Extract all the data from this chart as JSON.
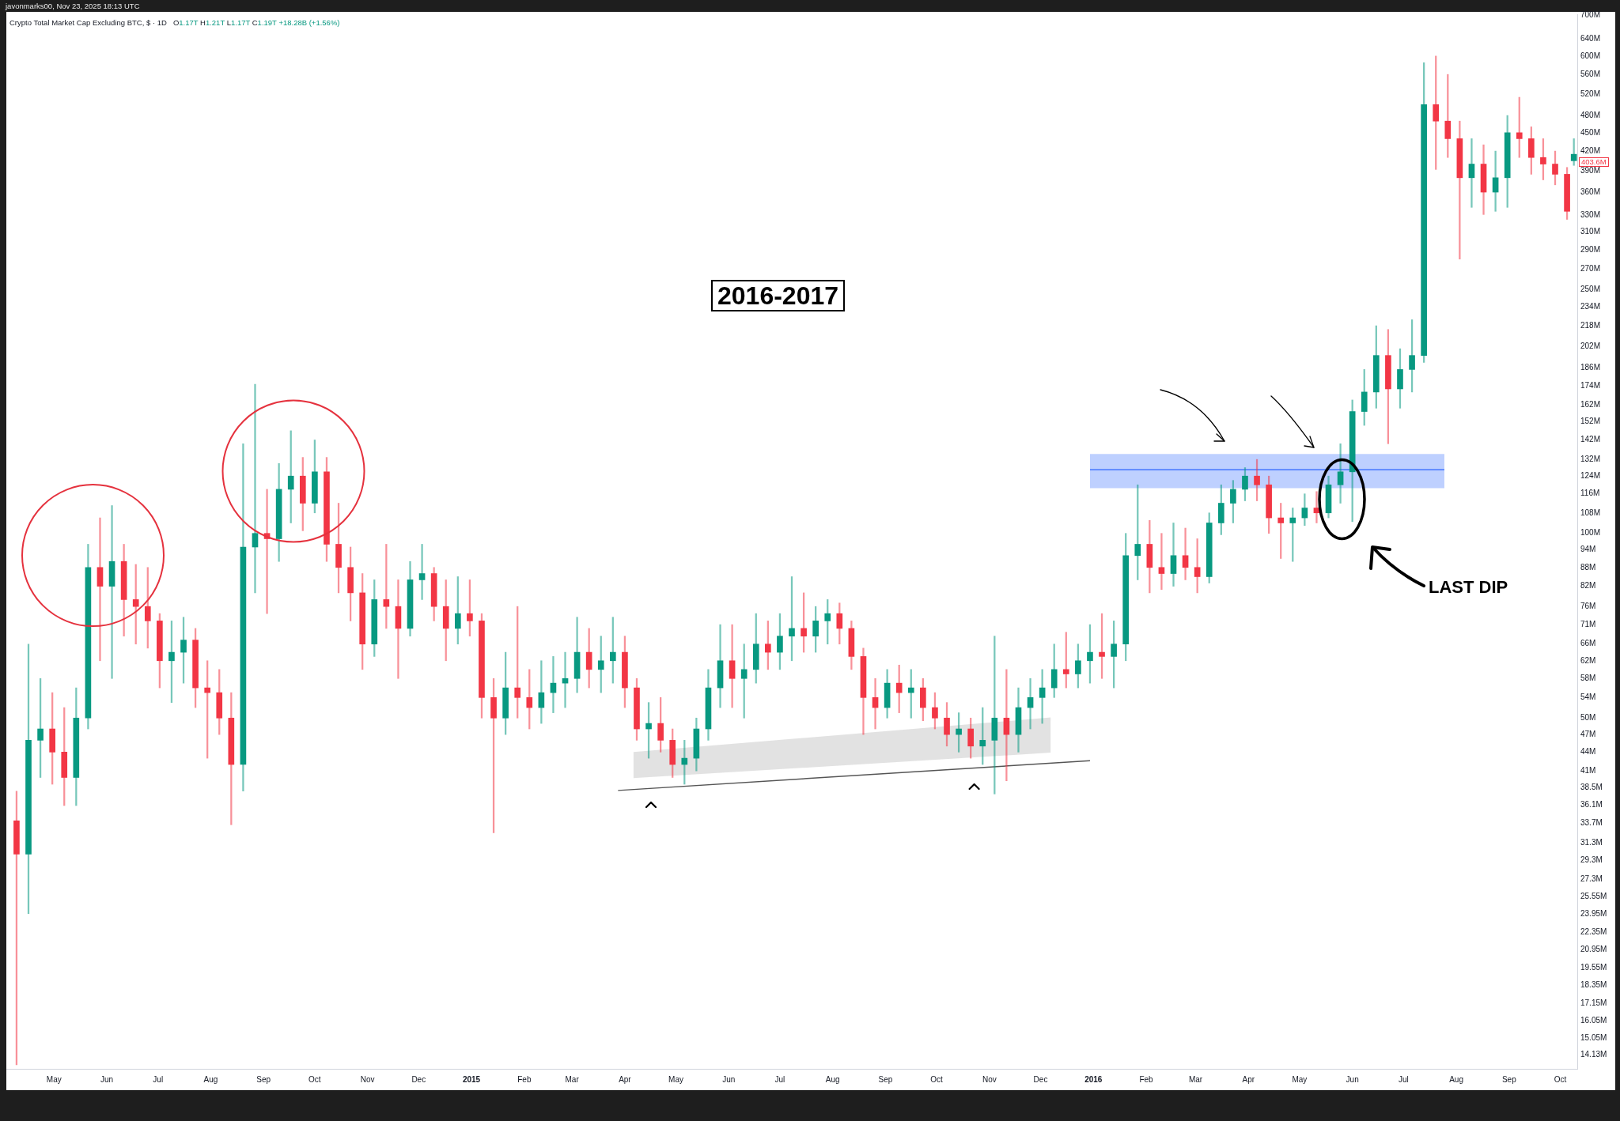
{
  "chart_data": {
    "type": "candlestick",
    "title": "Crypto Total Market Cap Excluding BTC, $ · 1D",
    "subtitle": "O1.17T H1.21T L1.17T C1.19T +18.28B (+1.56%)",
    "annotations": [
      "javonmarks00, Nov 23, 2025 18:13 UTC",
      "2016-2017",
      "LAST DIP",
      {
        "text": "403.6M",
        "y": 403.6
      }
    ],
    "log": "y",
    "xlim": [
      "2014-04-03",
      "2016-10-11"
    ],
    "xticks": [
      {
        "value": "2014-05-01",
        "label": "May"
      },
      {
        "value": "2014-06-01",
        "label": "Jun"
      },
      {
        "value": "2014-07-01",
        "label": "Jul"
      },
      {
        "value": "2014-08-01",
        "label": "Aug"
      },
      {
        "value": "2014-09-01",
        "label": "Sep"
      },
      {
        "value": "2014-10-01",
        "label": "Oct"
      },
      {
        "value": "2014-11-01",
        "label": "Nov"
      },
      {
        "value": "2014-12-01",
        "label": "Dec"
      },
      {
        "value": "2015-01-01",
        "label": "2015"
      },
      {
        "value": "2015-02-01",
        "label": "Feb"
      },
      {
        "value": "2015-03-01",
        "label": "Mar"
      },
      {
        "value": "2015-04-01",
        "label": "Apr"
      },
      {
        "value": "2015-05-01",
        "label": "May"
      },
      {
        "value": "2015-06-01",
        "label": "Jun"
      },
      {
        "value": "2015-07-01",
        "label": "Jul"
      },
      {
        "value": "2015-08-01",
        "label": "Aug"
      },
      {
        "value": "2015-09-01",
        "label": "Sep"
      },
      {
        "value": "2015-10-01",
        "label": "Oct"
      },
      {
        "value": "2015-11-01",
        "label": "Nov"
      },
      {
        "value": "2015-12-01",
        "label": "Dec"
      },
      {
        "value": "2016-01-01",
        "label": "2016"
      },
      {
        "value": "2016-02-01",
        "label": "Feb"
      },
      {
        "value": "2016-03-01",
        "label": "Mar"
      },
      {
        "value": "2016-04-01",
        "label": "Apr"
      },
      {
        "value": "2016-05-01",
        "label": "May"
      },
      {
        "value": "2016-06-01",
        "label": "Jun"
      },
      {
        "value": "2016-07-01",
        "label": "Jul"
      },
      {
        "value": "2016-08-01",
        "label": "Aug"
      },
      {
        "value": "2016-09-01",
        "label": "Sep"
      },
      {
        "value": "2016-10-01",
        "label": "Oct"
      }
    ],
    "ylim": [
      13.4,
      702
    ],
    "yticks": [
      {
        "value": 14.13,
        "label": "14.13M"
      },
      {
        "value": 15.05,
        "label": "15.05M"
      },
      {
        "value": 16.05,
        "label": "16.05M"
      },
      {
        "value": 17.15,
        "label": "17.15M"
      },
      {
        "value": 18.35,
        "label": "18.35M"
      },
      {
        "value": 19.55,
        "label": "19.55M"
      },
      {
        "value": 20.95,
        "label": "20.95M"
      },
      {
        "value": 22.35,
        "label": "22.35M"
      },
      {
        "value": 23.95,
        "label": "23.95M"
      },
      {
        "value": 25.55,
        "label": "25.55M"
      },
      {
        "value": 27.3,
        "label": "27.3M"
      },
      {
        "value": 29.3,
        "label": "29.3M"
      },
      {
        "value": 31.3,
        "label": "31.3M"
      },
      {
        "value": 33.7,
        "label": "33.7M"
      },
      {
        "value": 36.1,
        "label": "36.1M"
      },
      {
        "value": 38.5,
        "label": "38.5M"
      },
      {
        "value": 41,
        "label": "41M"
      },
      {
        "value": 44,
        "label": "44M"
      },
      {
        "value": 47,
        "label": "47M"
      },
      {
        "value": 50,
        "label": "50M"
      },
      {
        "value": 54,
        "label": "54M"
      },
      {
        "value": 58,
        "label": "58M"
      },
      {
        "value": 62,
        "label": "62M"
      },
      {
        "value": 66,
        "label": "66M"
      },
      {
        "value": 71,
        "label": "71M"
      },
      {
        "value": 76,
        "label": "76M"
      },
      {
        "value": 82,
        "label": "82M"
      },
      {
        "value": 88,
        "label": "88M"
      },
      {
        "value": 94,
        "label": "94M"
      },
      {
        "value": 100,
        "label": "100M"
      },
      {
        "value": 108,
        "label": "108M"
      },
      {
        "value": 116,
        "label": "116M"
      },
      {
        "value": 124,
        "label": "124M"
      },
      {
        "value": 132,
        "label": "132M"
      },
      {
        "value": 142,
        "label": "142M"
      },
      {
        "value": 152,
        "label": "152M"
      },
      {
        "value": 162,
        "label": "162M"
      },
      {
        "value": 174,
        "label": "174M"
      },
      {
        "value": 186,
        "label": "186M"
      },
      {
        "value": 202,
        "label": "202M"
      },
      {
        "value": 218,
        "label": "218M"
      },
      {
        "value": 234,
        "label": "234M"
      },
      {
        "value": 250,
        "label": "250M"
      },
      {
        "value": 270,
        "label": "270M"
      },
      {
        "value": 290,
        "label": "290M"
      },
      {
        "value": 310,
        "label": "310M"
      },
      {
        "value": 330,
        "label": "330M"
      },
      {
        "value": 360,
        "label": "360M"
      },
      {
        "value": 390,
        "label": "390M"
      },
      {
        "value": 420,
        "label": "420M"
      },
      {
        "value": 450,
        "label": "450M"
      },
      {
        "value": 480,
        "label": "480M"
      },
      {
        "value": 520,
        "label": "520M"
      },
      {
        "value": 560,
        "label": "560M"
      },
      {
        "value": 600,
        "label": "600M"
      },
      {
        "value": 640,
        "label": "640M"
      },
      {
        "value": 700,
        "label": "700M"
      }
    ],
    "series": [
      {
        "type": "candlestick",
        "x": [
          "2014-04-09",
          "2014-04-16",
          "2014-04-23",
          "2014-04-30",
          "2014-05-07",
          "2014-05-14",
          "2014-05-21",
          "2014-05-28",
          "2014-06-04",
          "2014-06-11",
          "2014-06-18",
          "2014-06-25",
          "2014-07-02",
          "2014-07-09",
          "2014-07-16",
          "2014-07-23",
          "2014-07-30",
          "2014-08-06",
          "2014-08-13",
          "2014-08-20",
          "2014-08-27",
          "2014-09-03",
          "2014-09-10",
          "2014-09-17",
          "2014-09-24",
          "2014-10-01",
          "2014-10-08",
          "2014-10-15",
          "2014-10-22",
          "2014-10-29",
          "2014-11-05",
          "2014-11-12",
          "2014-11-19",
          "2014-11-26",
          "2014-12-03",
          "2014-12-10",
          "2014-12-17",
          "2014-12-24",
          "2014-12-31",
          "2015-01-07",
          "2015-01-14",
          "2015-01-21",
          "2015-01-28",
          "2015-02-04",
          "2015-02-11",
          "2015-02-18",
          "2015-02-25",
          "2015-03-04",
          "2015-03-11",
          "2015-03-18",
          "2015-03-25",
          "2015-04-01",
          "2015-04-08",
          "2015-04-15",
          "2015-04-22",
          "2015-04-29",
          "2015-05-06",
          "2015-05-13",
          "2015-05-20",
          "2015-05-27",
          "2015-06-03",
          "2015-06-10",
          "2015-06-17",
          "2015-06-24",
          "2015-07-01",
          "2015-07-08",
          "2015-07-15",
          "2015-07-22",
          "2015-07-29",
          "2015-08-05",
          "2015-08-12",
          "2015-08-19",
          "2015-08-26",
          "2015-09-02",
          "2015-09-09",
          "2015-09-16",
          "2015-09-23",
          "2015-09-30",
          "2015-10-07",
          "2015-10-14",
          "2015-10-21",
          "2015-10-28",
          "2015-11-04",
          "2015-11-11",
          "2015-11-18",
          "2015-11-25",
          "2015-12-02",
          "2015-12-09",
          "2015-12-16",
          "2015-12-23",
          "2015-12-30",
          "2016-01-06",
          "2016-01-13",
          "2016-01-20",
          "2016-01-27",
          "2016-02-03",
          "2016-02-10",
          "2016-02-17",
          "2016-02-24",
          "2016-03-02",
          "2016-03-09",
          "2016-03-16",
          "2016-03-23",
          "2016-03-30",
          "2016-04-06",
          "2016-04-13",
          "2016-04-20",
          "2016-04-27",
          "2016-05-04",
          "2016-05-11",
          "2016-05-18",
          "2016-05-25",
          "2016-06-01",
          "2016-06-08",
          "2016-06-15",
          "2016-06-22",
          "2016-06-29",
          "2016-07-06",
          "2016-07-13",
          "2016-07-20",
          "2016-07-27",
          "2016-08-03",
          "2016-08-10",
          "2016-08-17",
          "2016-08-24",
          "2016-08-31",
          "2016-09-07",
          "2016-09-14",
          "2016-09-21",
          "2016-09-28",
          "2016-10-05",
          "2016-10-09"
        ],
        "ohlc": [
          [
            34,
            38,
            13.6,
            30
          ],
          [
            30,
            66,
            24,
            46
          ],
          [
            46,
            58,
            40,
            48
          ],
          [
            48,
            55,
            39,
            44
          ],
          [
            44,
            52,
            36,
            40
          ],
          [
            40,
            56,
            36,
            50
          ],
          [
            50,
            96,
            48,
            88
          ],
          [
            88,
            106,
            62,
            82
          ],
          [
            82,
            111,
            58,
            90
          ],
          [
            90,
            96,
            68,
            78
          ],
          [
            78,
            89,
            66,
            76
          ],
          [
            76,
            88,
            65,
            72
          ],
          [
            72,
            74,
            56,
            62
          ],
          [
            62,
            72,
            53,
            64
          ],
          [
            64,
            73,
            57,
            67
          ],
          [
            67,
            70,
            52,
            56
          ],
          [
            56,
            62,
            43,
            55
          ],
          [
            55,
            60,
            47,
            50
          ],
          [
            50,
            55,
            33.5,
            42
          ],
          [
            42,
            140,
            38,
            95
          ],
          [
            95,
            175,
            80,
            100
          ],
          [
            100,
            118,
            74,
            98
          ],
          [
            98,
            130,
            90,
            118
          ],
          [
            118,
            147,
            104,
            124
          ],
          [
            124,
            133,
            101,
            112
          ],
          [
            112,
            142,
            108,
            126
          ],
          [
            126,
            133,
            90,
            96
          ],
          [
            96,
            112,
            80,
            88
          ],
          [
            88,
            95,
            72,
            80
          ],
          [
            80,
            86,
            60,
            66
          ],
          [
            66,
            84,
            63,
            78
          ],
          [
            78,
            96,
            70,
            76
          ],
          [
            76,
            84,
            58,
            70
          ],
          [
            70,
            90,
            68,
            84
          ],
          [
            84,
            96,
            78,
            86
          ],
          [
            86,
            88,
            72,
            76
          ],
          [
            76,
            84,
            62,
            70
          ],
          [
            70,
            85,
            66,
            74
          ],
          [
            74,
            84,
            68,
            72
          ],
          [
            72,
            74,
            50,
            54
          ],
          [
            54,
            58,
            32.5,
            50
          ],
          [
            50,
            64,
            47,
            56
          ],
          [
            56,
            76,
            50,
            54
          ],
          [
            54,
            60,
            48,
            52
          ],
          [
            52,
            62,
            49,
            55
          ],
          [
            55,
            63,
            51,
            57
          ],
          [
            57,
            64,
            52,
            58
          ],
          [
            58,
            73,
            55,
            64
          ],
          [
            64,
            70,
            56,
            60
          ],
          [
            60,
            68,
            55,
            62
          ],
          [
            62,
            73,
            57,
            64
          ],
          [
            64,
            68,
            52,
            56
          ],
          [
            56,
            58,
            46,
            48
          ],
          [
            48,
            53,
            43,
            49
          ],
          [
            49,
            54,
            44,
            46
          ],
          [
            46,
            48,
            40,
            42
          ],
          [
            42,
            46,
            39,
            43
          ],
          [
            43,
            50,
            41,
            48
          ],
          [
            48,
            60,
            46,
            56
          ],
          [
            56,
            71,
            52,
            62
          ],
          [
            62,
            71,
            52,
            58
          ],
          [
            58,
            66,
            50,
            60
          ],
          [
            60,
            74,
            57,
            66
          ],
          [
            66,
            72,
            60,
            64
          ],
          [
            64,
            74,
            60,
            68
          ],
          [
            68,
            85,
            62,
            70
          ],
          [
            70,
            80,
            64,
            68
          ],
          [
            68,
            76,
            64,
            72
          ],
          [
            72,
            78,
            66,
            74
          ],
          [
            74,
            77,
            66,
            70
          ],
          [
            70,
            72,
            60,
            63
          ],
          [
            63,
            65,
            47,
            54
          ],
          [
            54,
            58,
            48,
            52
          ],
          [
            52,
            60,
            50,
            57
          ],
          [
            57,
            61,
            51,
            55
          ],
          [
            55,
            60,
            50,
            56
          ],
          [
            56,
            58,
            49.5,
            52
          ],
          [
            52,
            55,
            48,
            50
          ],
          [
            50,
            53,
            45,
            47
          ],
          [
            47,
            51,
            44,
            48
          ],
          [
            48,
            50,
            43,
            45
          ],
          [
            45,
            52,
            42,
            46
          ],
          [
            46,
            68,
            37.6,
            50
          ],
          [
            50,
            60,
            39.5,
            47
          ],
          [
            47,
            56,
            44,
            52
          ],
          [
            52,
            58,
            48,
            54
          ],
          [
            54,
            60,
            49,
            56
          ],
          [
            56,
            66,
            54,
            60
          ],
          [
            60,
            69,
            56,
            59
          ],
          [
            59,
            66,
            56,
            62
          ],
          [
            62,
            71,
            57,
            64
          ],
          [
            64,
            74,
            58,
            63
          ],
          [
            63,
            72,
            56,
            66
          ],
          [
            66,
            100,
            62,
            92
          ],
          [
            92,
            120,
            84,
            96
          ],
          [
            96,
            105,
            80,
            88
          ],
          [
            88,
            100,
            81,
            86
          ],
          [
            86,
            104,
            82,
            92
          ],
          [
            92,
            102,
            84,
            88
          ],
          [
            88,
            98,
            80,
            85
          ],
          [
            85,
            108,
            83,
            104
          ],
          [
            104,
            120,
            99.5,
            112
          ],
          [
            112,
            122,
            104,
            118
          ],
          [
            118,
            128,
            113,
            124
          ],
          [
            124,
            132,
            113,
            120
          ],
          [
            120,
            124,
            100,
            106
          ],
          [
            106,
            112,
            91,
            104
          ],
          [
            104,
            110,
            90,
            106
          ],
          [
            106,
            116,
            103,
            110
          ],
          [
            110,
            117,
            104,
            108
          ],
          [
            108,
            124,
            106,
            120
          ],
          [
            120,
            140,
            112,
            126
          ],
          [
            126,
            165,
            104.5,
            158
          ],
          [
            158,
            185,
            150,
            170
          ],
          [
            170,
            218,
            160,
            195
          ],
          [
            195,
            215,
            140,
            172
          ],
          [
            172,
            200,
            160,
            185
          ],
          [
            185,
            223,
            170,
            195
          ],
          [
            195,
            585,
            190,
            500
          ],
          [
            500,
            600,
            392,
            470
          ],
          [
            470,
            560,
            410,
            440
          ],
          [
            440,
            470,
            280,
            380
          ],
          [
            380,
            440,
            340,
            400
          ],
          [
            400,
            430,
            331,
            360
          ],
          [
            360,
            420,
            335,
            380
          ],
          [
            380,
            480,
            340,
            450
          ],
          [
            450,
            514,
            410,
            440
          ],
          [
            440,
            460,
            385,
            410
          ],
          [
            410,
            440,
            377,
            400
          ],
          [
            400,
            420,
            370,
            385
          ],
          [
            385,
            395,
            325,
            335
          ],
          [
            405,
            440,
            398,
            415
          ]
        ],
        "colors": [
          "#f23645",
          "#089981",
          "#089981",
          "#f23645",
          "#f23645",
          "#089981",
          "#089981",
          "#f23645",
          "#089981",
          "#f23645",
          "#f23645",
          "#f23645",
          "#f23645",
          "#089981",
          "#089981",
          "#f23645",
          "#f23645",
          "#f23645",
          "#f23645",
          "#089981",
          "#089981",
          "#f23645",
          "#089981",
          "#089981",
          "#f23645",
          "#089981",
          "#f23645",
          "#f23645",
          "#f23645",
          "#f23645",
          "#089981",
          "#f23645",
          "#f23645",
          "#089981",
          "#089981",
          "#f23645",
          "#f23645",
          "#089981",
          "#f23645",
          "#f23645",
          "#f23645",
          "#089981",
          "#f23645",
          "#f23645",
          "#089981",
          "#089981",
          "#089981",
          "#089981",
          "#f23645",
          "#089981",
          "#089981",
          "#f23645",
          "#f23645",
          "#089981",
          "#f23645",
          "#f23645",
          "#089981",
          "#089981",
          "#089981",
          "#089981",
          "#f23645",
          "#089981",
          "#089981",
          "#f23645",
          "#089981",
          "#089981",
          "#f23645",
          "#089981",
          "#089981",
          "#f23645",
          "#f23645",
          "#f23645",
          "#f23645",
          "#089981",
          "#f23645",
          "#089981",
          "#f23645",
          "#f23645",
          "#f23645",
          "#089981",
          "#f23645",
          "#089981",
          "#089981",
          "#f23645",
          "#089981",
          "#089981",
          "#089981",
          "#089981",
          "#f23645",
          "#089981",
          "#089981",
          "#f23645",
          "#089981",
          "#089981",
          "#089981",
          "#f23645",
          "#f23645",
          "#089981",
          "#f23645",
          "#f23645",
          "#089981",
          "#089981",
          "#089981",
          "#089981",
          "#f23645",
          "#f23645",
          "#f23645",
          "#089981",
          "#089981",
          "#f23645",
          "#089981",
          "#089981",
          "#089981",
          "#089981",
          "#089981",
          "#f23645",
          "#089981",
          "#089981",
          "#089981",
          "#f23645",
          "#f23645",
          "#f23645",
          "#089981",
          "#f23645",
          "#089981",
          "#089981",
          "#f23645",
          "#f23645",
          "#f23645",
          "#f23645",
          "#f23645",
          "#089981"
        ]
      },
      {
        "type": "line",
        "color": "#2962ff",
        "x": [
          "2015-12-30",
          "2016-07-25"
        ],
        "values": [
          127,
          127
        ],
        "lower": [
          118.5,
          118.5
        ],
        "upper": [
          134.7,
          134.7
        ]
      },
      {
        "type": "line",
        "color": "#9e9e9e",
        "x": [
          "2015-04-06",
          "2015-12-07"
        ],
        "values": [
          null,
          null
        ],
        "lower": [
          39.9,
          43.9
        ],
        "upper": [
          44,
          50.1
        ]
      },
      {
        "type": "line",
        "color": "#555555",
        "x": [
          "2015-03-28",
          "2015-12-30"
        ],
        "values": [
          38.1,
          42.6
        ]
      }
    ]
  }
}
